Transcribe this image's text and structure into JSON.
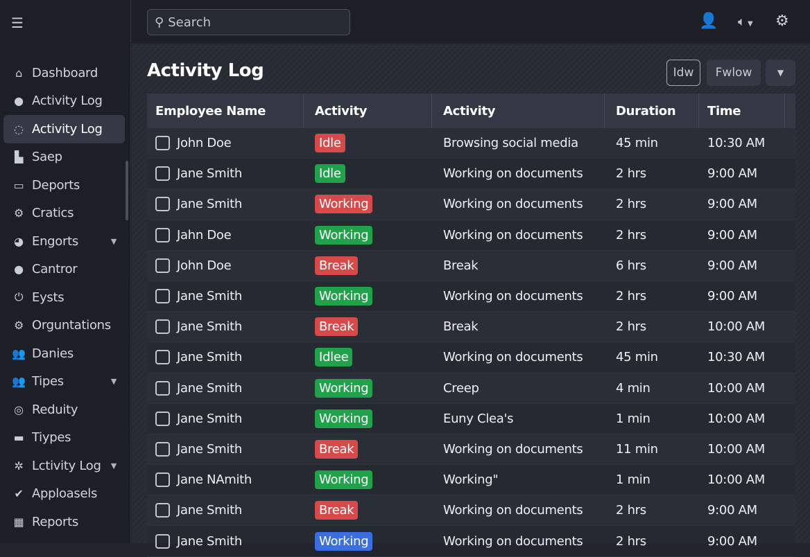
{
  "sidebar": {
    "items": [
      {
        "label": "Dashboard",
        "icon": "home-icon",
        "glyph": "⌂"
      },
      {
        "label": "Activity Log",
        "icon": "user-icon",
        "glyph": "●"
      },
      {
        "label": "Activity Log",
        "icon": "refresh-icon",
        "glyph": "◌",
        "active": true
      },
      {
        "label": "Saep",
        "icon": "chart-icon",
        "glyph": "▙"
      },
      {
        "label": "Deports",
        "icon": "monitor-icon",
        "glyph": "▭"
      },
      {
        "label": "Cratics",
        "icon": "gear-icon",
        "glyph": "⚙"
      },
      {
        "label": "Engorts",
        "icon": "tag-icon",
        "glyph": "◕",
        "caret": true
      },
      {
        "label": "Cantror",
        "icon": "leaf-icon",
        "glyph": "●"
      },
      {
        "label": "Eysts",
        "icon": "power-icon",
        "glyph": "⏻"
      },
      {
        "label": "Orguntations",
        "icon": "cog-icon",
        "glyph": "⚙"
      },
      {
        "label": "Danies",
        "icon": "users-icon",
        "glyph": "👥"
      },
      {
        "label": "Tipes",
        "icon": "users-icon",
        "glyph": "👥",
        "caret": true
      },
      {
        "label": "Reduity",
        "icon": "compass-icon",
        "glyph": "◎"
      },
      {
        "label": "Tiypes",
        "icon": "folder-icon",
        "glyph": "▬"
      },
      {
        "label": "Lctivity Log",
        "icon": "settings-icon",
        "glyph": "✲",
        "caret": true
      },
      {
        "label": "Apploasels",
        "icon": "check-circle-icon",
        "glyph": "✔"
      },
      {
        "label": "Reports",
        "icon": "gift-icon",
        "glyph": "▦"
      }
    ]
  },
  "search": {
    "placeholder": "Search"
  },
  "page": {
    "title": "Activity Log",
    "btn_idle": "Idw",
    "btn_follow": "Fwlow"
  },
  "table": {
    "headers": [
      "Employee Name",
      "Activity",
      "Activity",
      "Duration",
      "Time"
    ],
    "rows": [
      {
        "name": "John Doe",
        "status": "Idle",
        "color": "#d84a4a",
        "activity": "Browsing social media",
        "duration": "45 min",
        "time": "10:30 AM"
      },
      {
        "name": "Jane Smith",
        "status": "Idle",
        "color": "#1fa24a",
        "activity": "Working on documents",
        "duration": "2 hrs",
        "time": "9:00 AM"
      },
      {
        "name": "Jane Smith",
        "status": "Working",
        "color": "#d84a4a",
        "activity": "Working on documents",
        "duration": "2 hrs",
        "time": "9:00 AM"
      },
      {
        "name": "Jahn Doe",
        "status": "Working",
        "color": "#1fa24a",
        "activity": "Working on documents",
        "duration": "2 hrs",
        "time": "9:00 AM"
      },
      {
        "name": "John Doe",
        "status": "Break",
        "color": "#d84a4a",
        "activity": "Break",
        "duration": "6 hrs",
        "time": "9:00 AM"
      },
      {
        "name": "Jane Smith",
        "status": "Working",
        "color": "#1fa24a",
        "activity": "Working on documents",
        "duration": "2 hrs",
        "time": "9:00 AM"
      },
      {
        "name": "Jane Smith",
        "status": "Break",
        "color": "#d84a4a",
        "activity": "Break",
        "duration": "2 hrs",
        "time": "10:00 AM"
      },
      {
        "name": "Jane Smith",
        "status": "Idlee",
        "color": "#1fa24a",
        "activity": "Working on documents",
        "duration": "45 min",
        "time": "10:30 AM"
      },
      {
        "name": "Jane Smith",
        "status": "Working",
        "color": "#1fa24a",
        "activity": "Creep",
        "duration": "4 min",
        "time": "10:00 AM"
      },
      {
        "name": "Jane Smith",
        "status": "Working",
        "color": "#1fa24a",
        "activity": "Euny Clea's",
        "duration": "1 min",
        "time": "10:00 AM"
      },
      {
        "name": "Jane Smith",
        "status": "Break",
        "color": "#d84a4a",
        "activity": "Working on documents",
        "duration": "11 min",
        "time": "10:00 AM"
      },
      {
        "name": "Jane NAmith",
        "status": "Working",
        "color": "#1fa24a",
        "activity": "Working\"",
        "duration": "1 min",
        "time": "10:00 AM"
      },
      {
        "name": "Jane Smith",
        "status": "Break",
        "color": "#d84a4a",
        "activity": "Working on documents",
        "duration": "2 hrs",
        "time": "9:00 AM"
      },
      {
        "name": "Jane Smith",
        "status": "Working",
        "color": "#3b6fe0",
        "activity": "Working on documents",
        "duration": "2 hrs",
        "time": "9:00 AM"
      }
    ]
  }
}
